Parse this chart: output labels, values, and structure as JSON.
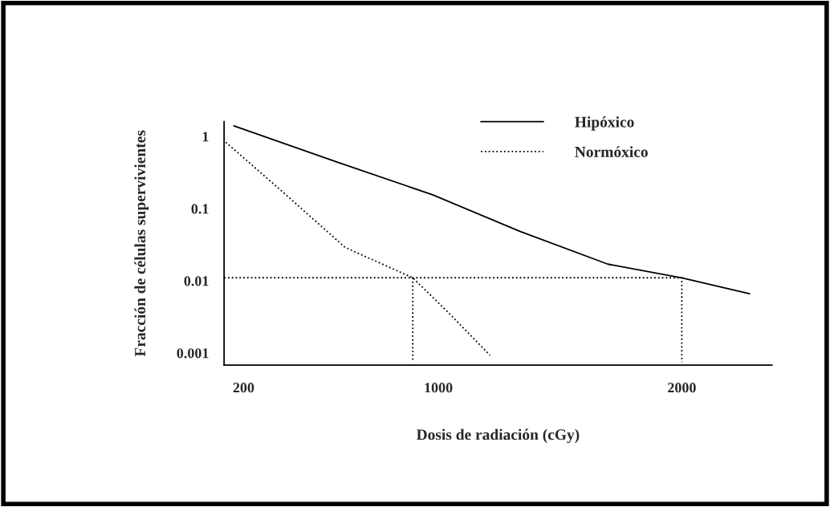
{
  "chart_data": {
    "type": "line",
    "xlabel": "Dosis de radiación (cGy)",
    "ylabel": "Fracción de células supervivientes",
    "log": "y",
    "xlim": [
      120,
      2370
    ],
    "ylim": [
      0.00068,
      1.6
    ],
    "xticks": [
      200,
      1000,
      2000
    ],
    "yticks": [
      {
        "value": 1,
        "label": "1"
      },
      {
        "value": 0.1,
        "label": "0.1"
      },
      {
        "value": 0.01,
        "label": "0.01"
      },
      {
        "value": 0.001,
        "label": "0.001"
      }
    ],
    "grid": false,
    "legend": "top right",
    "series": [
      {
        "name": "Hipóxico",
        "color": "#000000",
        "line_style": "solid",
        "x": [
          160,
          585,
          977,
          1337,
          1696,
          2000,
          2278
        ],
        "values": [
          1.4,
          0.44,
          0.155,
          0.048,
          0.017,
          0.011,
          0.0066
        ]
      },
      {
        "name": "Normóxico",
        "color": "#000000",
        "line_style": "dotted",
        "x": [
          127,
          355,
          617,
          895,
          1042,
          1212
        ],
        "values": [
          0.83,
          0.177,
          0.029,
          0.011,
          0.0036,
          0.00093
        ]
      },
      {
        "color": "#000000",
        "line_style": "dotted",
        "x": [
          120,
          2000,
          2000
        ],
        "values": [
          0.011,
          0.011,
          0.00075
        ]
      },
      {
        "color": "#000000",
        "line_style": "dotted",
        "x": [
          895,
          895
        ],
        "values": [
          0.011,
          0.00075
        ]
      }
    ]
  }
}
